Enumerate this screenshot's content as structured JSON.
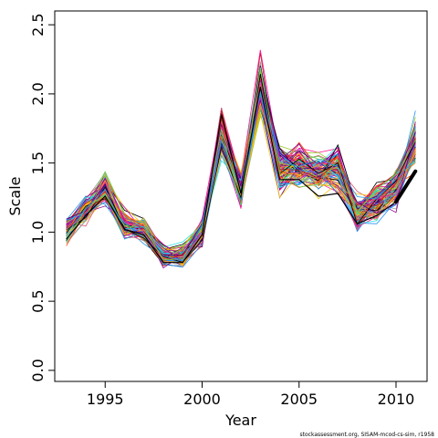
{
  "chart_data": {
    "type": "line",
    "title": "",
    "xlabel": "Year",
    "ylabel": "Scale",
    "xlim": [
      1992.4,
      2011.6
    ],
    "ylim": [
      -0.08,
      2.6
    ],
    "xticks": [
      1995,
      2000,
      2005,
      2010
    ],
    "yticks": [
      0.0,
      0.5,
      1.0,
      1.5,
      2.0,
      2.5
    ],
    "xtick_labels": [
      "1995",
      "2000",
      "2005",
      "2010"
    ],
    "ytick_labels": [
      "0.0",
      "0.5",
      "1.0",
      "1.5",
      "2.0",
      "2.5"
    ],
    "grid": false,
    "legend": "none",
    "x": [
      1993,
      1994,
      1995,
      1996,
      1997,
      1998,
      1999,
      2000,
      2001,
      2002,
      2003,
      2004,
      2005,
      2006,
      2007,
      2008,
      2009,
      2010,
      2011
    ],
    "series_count": 100,
    "ensemble_mean": [
      1.01,
      1.16,
      1.31,
      1.05,
      1.02,
      0.82,
      0.83,
      1.0,
      1.72,
      1.3,
      2.08,
      1.45,
      1.48,
      1.42,
      1.46,
      1.14,
      1.22,
      1.32,
      1.65
    ],
    "ensemble_spread": [
      0.05,
      0.05,
      0.06,
      0.05,
      0.05,
      0.04,
      0.04,
      0.05,
      0.09,
      0.07,
      0.11,
      0.09,
      0.09,
      0.08,
      0.09,
      0.06,
      0.07,
      0.08,
      0.09
    ],
    "highlight_series": {
      "x": [
        1993,
        1994,
        1995,
        1996,
        1997,
        1998,
        1999,
        2000,
        2001,
        2002,
        2003,
        2004,
        2005,
        2006,
        2007,
        2008,
        2009,
        2010,
        2011
      ],
      "values": [
        0.95,
        1.12,
        1.26,
        1.02,
        0.98,
        0.78,
        0.78,
        0.98,
        1.85,
        1.28,
        2.05,
        1.38,
        1.38,
        1.26,
        1.28,
        1.06,
        1.12,
        1.22,
        1.44
      ],
      "color": "#000000"
    },
    "palette": [
      "#000000",
      "#df536b",
      "#61d04f",
      "#2297e6",
      "#28e2e5",
      "#cd0bbc",
      "#f5c710",
      "#9e9e9e",
      "#8b008b",
      "#ff1493",
      "#ff4500",
      "#ffa500",
      "#1e90ff",
      "#9acd32",
      "#b22222",
      "#4b0082"
    ],
    "caption": "stockassessment.org, SISAM-mcod-cs-sim, r1958"
  }
}
